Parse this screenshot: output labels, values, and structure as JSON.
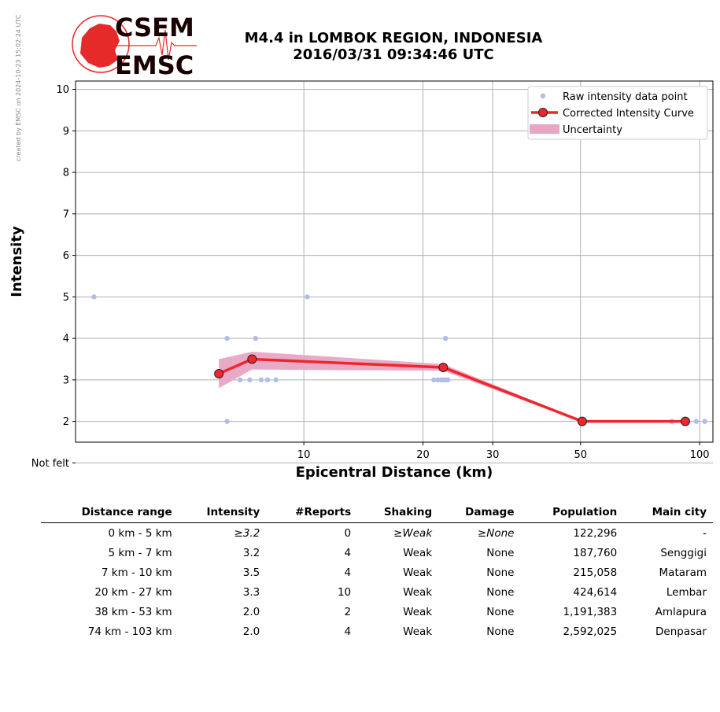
{
  "credit": "created by EMSC on 2024-10-23 15:02:24 UTC",
  "logo": {
    "line1": "CSEM",
    "line2": "EMSC",
    "color": "#e62a2a"
  },
  "title": {
    "line1": "M4.4 in LOMBOK REGION, INDONESIA",
    "line2": "2016/03/31 09:34:46 UTC"
  },
  "chart_data": {
    "type": "line",
    "xlabel": "Epicentral Distance (km)",
    "ylabel": "Intensity",
    "x_scale": "log",
    "xlim": [
      2.65,
      108
    ],
    "ylim": [
      1.5,
      10.2
    ],
    "x_ticks": [
      10,
      20,
      30,
      50,
      100
    ],
    "y_ticks": [
      {
        "value": 1,
        "label": "Not felt"
      },
      {
        "value": 2,
        "label": "2"
      },
      {
        "value": 3,
        "label": "3"
      },
      {
        "value": 4,
        "label": "4"
      },
      {
        "value": 5,
        "label": "5"
      },
      {
        "value": 6,
        "label": "6"
      },
      {
        "value": 7,
        "label": "7"
      },
      {
        "value": 8,
        "label": "8"
      },
      {
        "value": 9,
        "label": "9"
      },
      {
        "value": 10,
        "label": "10"
      }
    ],
    "grid": true,
    "legend_position": "top-right",
    "colors": {
      "raw": "#b0bde8",
      "curve": "#f0262d",
      "uncertainty": "#e8a5c4"
    },
    "series": [
      {
        "name": "Raw intensity data point",
        "kind": "scatter",
        "points": [
          [
            2.95,
            5
          ],
          [
            6.4,
            4
          ],
          [
            6.4,
            2
          ],
          [
            7.55,
            4
          ],
          [
            6.9,
            3
          ],
          [
            7.3,
            3
          ],
          [
            7.8,
            3
          ],
          [
            8.5,
            3
          ],
          [
            8.1,
            3
          ],
          [
            10.2,
            5
          ],
          [
            21.3,
            3
          ],
          [
            21.8,
            3
          ],
          [
            22.2,
            3
          ],
          [
            22.5,
            3
          ],
          [
            22.8,
            3
          ],
          [
            23.1,
            3
          ],
          [
            22.8,
            4
          ],
          [
            85,
            2
          ],
          [
            98,
            2
          ],
          [
            103,
            2
          ]
        ]
      },
      {
        "name": "Corrected Intensity Curve",
        "kind": "line",
        "points": [
          [
            6.1,
            3.15
          ],
          [
            7.4,
            3.5
          ],
          [
            22.5,
            3.3
          ],
          [
            50.5,
            2.0
          ],
          [
            92,
            2.0
          ]
        ]
      },
      {
        "name": "Uncertainty",
        "kind": "band",
        "upper": [
          [
            6.1,
            3.5
          ],
          [
            7.4,
            3.68
          ],
          [
            22.5,
            3.38
          ],
          [
            50.5,
            2.02
          ],
          [
            92,
            2.02
          ]
        ],
        "lower": [
          [
            6.1,
            2.8
          ],
          [
            7.4,
            3.25
          ],
          [
            22.5,
            3.22
          ],
          [
            50.5,
            1.98
          ],
          [
            92,
            1.98
          ]
        ]
      }
    ]
  },
  "table": {
    "headers": [
      "Distance range",
      "Intensity",
      "#Reports",
      "Shaking",
      "Damage",
      "Population",
      "Main city"
    ],
    "rows": [
      [
        "0 km -    5 km",
        "≥3.2",
        "0",
        "≥Weak",
        "≥None",
        "122,296",
        "-"
      ],
      [
        "5 km -    7 km",
        "3.2",
        "4",
        "Weak",
        "None",
        "187,760",
        "Senggigi"
      ],
      [
        "7 km -   10 km",
        "3.5",
        "4",
        "Weak",
        "None",
        "215,058",
        "Mataram"
      ],
      [
        "20 km -   27 km",
        "3.3",
        "10",
        "Weak",
        "None",
        "424,614",
        "Lembar"
      ],
      [
        "38 km -   53 km",
        "2.0",
        "2",
        "Weak",
        "None",
        "1,191,383",
        "Amlapura"
      ],
      [
        "74 km -  103 km",
        "2.0",
        "4",
        "Weak",
        "None",
        "2,592,025",
        "Denpasar"
      ]
    ]
  }
}
